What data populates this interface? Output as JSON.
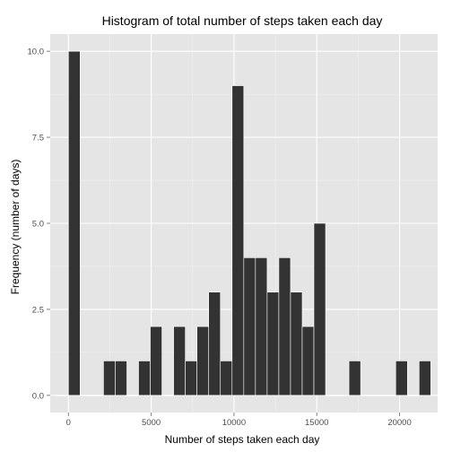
{
  "chart_data": {
    "type": "bar",
    "title": "Histogram of total number of steps taken each day",
    "xlabel": "Number of steps taken each day",
    "ylabel": "Frequency (number of days)",
    "xlim": [
      -1100,
      22300
    ],
    "ylim": [
      -0.5,
      10.5
    ],
    "x_ticks": [
      0,
      5000,
      10000,
      15000,
      20000
    ],
    "x_tick_labels": [
      "0",
      "5000",
      "10000",
      "15000",
      "20000"
    ],
    "y_ticks": [
      0,
      2.5,
      5,
      7.5,
      10
    ],
    "y_tick_labels": [
      "0.0",
      "2.5",
      "5.0",
      "7.5",
      "10.0"
    ],
    "bin_width": 706,
    "bins": [
      {
        "center": -353,
        "count": 0
      },
      {
        "center": 353,
        "count": 10
      },
      {
        "center": 1059,
        "count": 0
      },
      {
        "center": 1765,
        "count": 0
      },
      {
        "center": 2471,
        "count": 1
      },
      {
        "center": 3177,
        "count": 1
      },
      {
        "center": 3883,
        "count": 0
      },
      {
        "center": 4589,
        "count": 1
      },
      {
        "center": 5295,
        "count": 2
      },
      {
        "center": 6001,
        "count": 0
      },
      {
        "center": 6707,
        "count": 2
      },
      {
        "center": 7413,
        "count": 1
      },
      {
        "center": 8119,
        "count": 2
      },
      {
        "center": 8825,
        "count": 3
      },
      {
        "center": 9531,
        "count": 1
      },
      {
        "center": 10237,
        "count": 9
      },
      {
        "center": 10943,
        "count": 4
      },
      {
        "center": 11649,
        "count": 4
      },
      {
        "center": 12355,
        "count": 3
      },
      {
        "center": 13061,
        "count": 4
      },
      {
        "center": 13767,
        "count": 3
      },
      {
        "center": 14473,
        "count": 2
      },
      {
        "center": 15179,
        "count": 5
      },
      {
        "center": 15885,
        "count": 0
      },
      {
        "center": 16591,
        "count": 0
      },
      {
        "center": 17297,
        "count": 1
      },
      {
        "center": 18003,
        "count": 0
      },
      {
        "center": 18709,
        "count": 0
      },
      {
        "center": 19415,
        "count": 0
      },
      {
        "center": 20121,
        "count": 1
      },
      {
        "center": 20827,
        "count": 0
      },
      {
        "center": 21533,
        "count": 1
      }
    ],
    "grid": true,
    "colors": {
      "panel": "#e5e5e5",
      "grid_major": "#ffffff",
      "grid_minor": "#f2f2f2",
      "bar_fill": "#333333",
      "bar_edge": "#ffffff",
      "tick": "#7f7f7f"
    }
  }
}
